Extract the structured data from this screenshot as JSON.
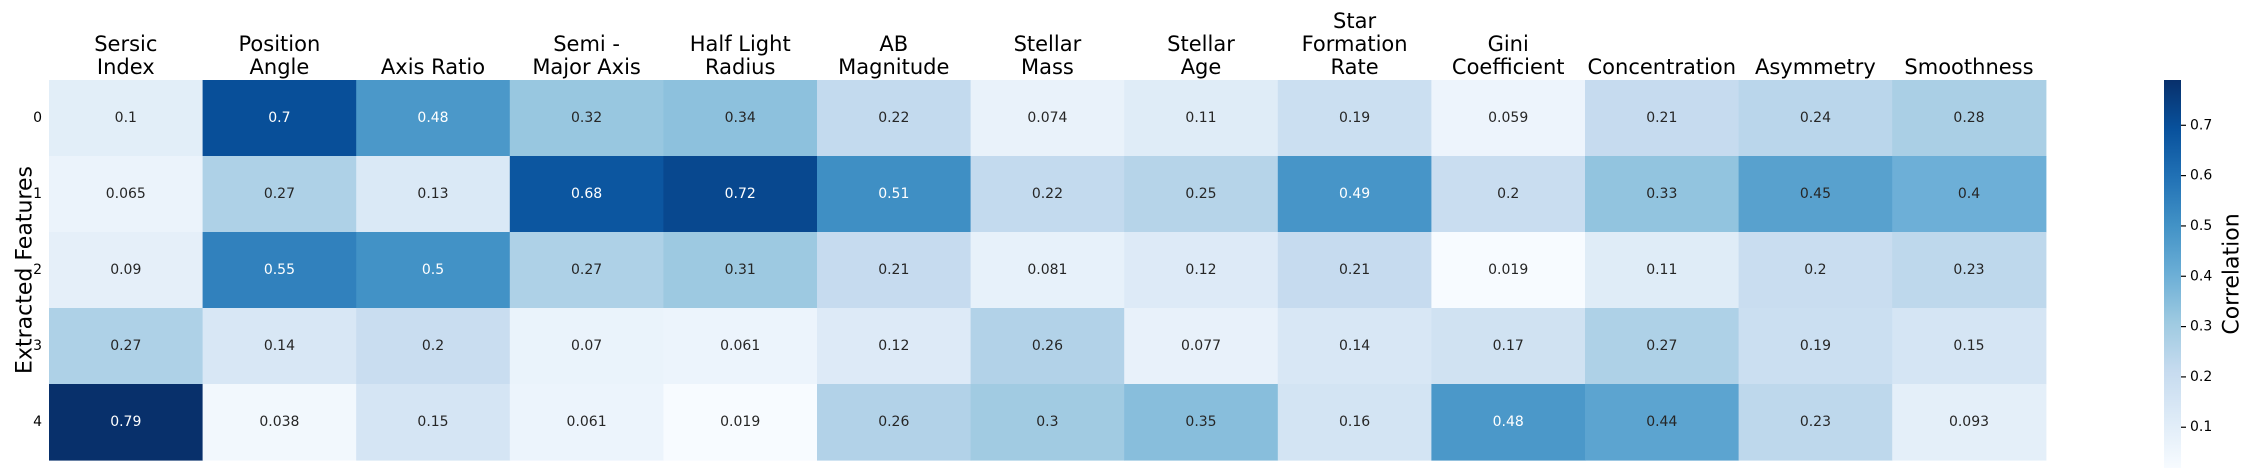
{
  "chart_data": {
    "type": "heatmap",
    "columns": [
      "Sersic\nIndex",
      "Position\nAngle",
      "Axis Ratio",
      "Semi -\nMajor Axis",
      "Half Light\nRadius",
      "AB\nMagnitude",
      "Stellar\nMass",
      "Stellar\nAge",
      "Star\nFormation\nRate",
      "Gini\nCoefficient",
      "Concentration",
      "Asymmetry",
      "Smoothness"
    ],
    "rows": [
      "0",
      "1",
      "2",
      "3",
      "4"
    ],
    "values": [
      [
        0.1,
        0.7,
        0.48,
        0.32,
        0.34,
        0.22,
        0.074,
        0.11,
        0.19,
        0.059,
        0.21,
        0.24,
        0.28
      ],
      [
        0.065,
        0.27,
        0.13,
        0.68,
        0.72,
        0.51,
        0.22,
        0.25,
        0.49,
        0.2,
        0.33,
        0.45,
        0.4
      ],
      [
        0.09,
        0.55,
        0.5,
        0.27,
        0.31,
        0.21,
        0.081,
        0.12,
        0.21,
        0.019,
        0.11,
        0.2,
        0.23
      ],
      [
        0.27,
        0.14,
        0.2,
        0.07,
        0.061,
        0.12,
        0.26,
        0.077,
        0.14,
        0.17,
        0.27,
        0.19,
        0.15
      ],
      [
        0.79,
        0.038,
        0.15,
        0.061,
        0.019,
        0.26,
        0.3,
        0.35,
        0.16,
        0.48,
        0.44,
        0.23,
        0.093
      ]
    ],
    "value_labels": [
      [
        "0.1",
        "0.7",
        "0.48",
        "0.32",
        "0.34",
        "0.22",
        "0.074",
        "0.11",
        "0.19",
        "0.059",
        "0.21",
        "0.24",
        "0.28"
      ],
      [
        "0.065",
        "0.27",
        "0.13",
        "0.68",
        "0.72",
        "0.51",
        "0.22",
        "0.25",
        "0.49",
        "0.2",
        "0.33",
        "0.45",
        "0.4"
      ],
      [
        "0.09",
        "0.55",
        "0.5",
        "0.27",
        "0.31",
        "0.21",
        "0.081",
        "0.12",
        "0.21",
        "0.019",
        "0.11",
        "0.2",
        "0.23"
      ],
      [
        "0.27",
        "0.14",
        "0.2",
        "0.07",
        "0.061",
        "0.12",
        "0.26",
        "0.077",
        "0.14",
        "0.17",
        "0.27",
        "0.19",
        "0.15"
      ],
      [
        "0.79",
        "0.038",
        "0.15",
        "0.061",
        "0.019",
        "0.26",
        "0.3",
        "0.35",
        "0.16",
        "0.48",
        "0.44",
        "0.23",
        "0.093"
      ]
    ],
    "ylabel": "Extracted Features",
    "colorbar_label": "Correlation",
    "colorbar_range": [
      0.019,
      0.79
    ],
    "colorbar_ticks": [
      0.1,
      0.2,
      0.3,
      0.4,
      0.5,
      0.6,
      0.7
    ],
    "colorbar_tick_labels": [
      "0.1",
      "0.2",
      "0.3",
      "0.4",
      "0.5",
      "0.6",
      "0.7"
    ],
    "colormap": "Blues",
    "colormap_stops": [
      "#f7fbff",
      "#deebf7",
      "#c6dbef",
      "#9ecae1",
      "#6baed6",
      "#4292c6",
      "#2171b5",
      "#08519c",
      "#08306b"
    ],
    "column_labels_position": "top",
    "colorbar_placement": "right"
  }
}
